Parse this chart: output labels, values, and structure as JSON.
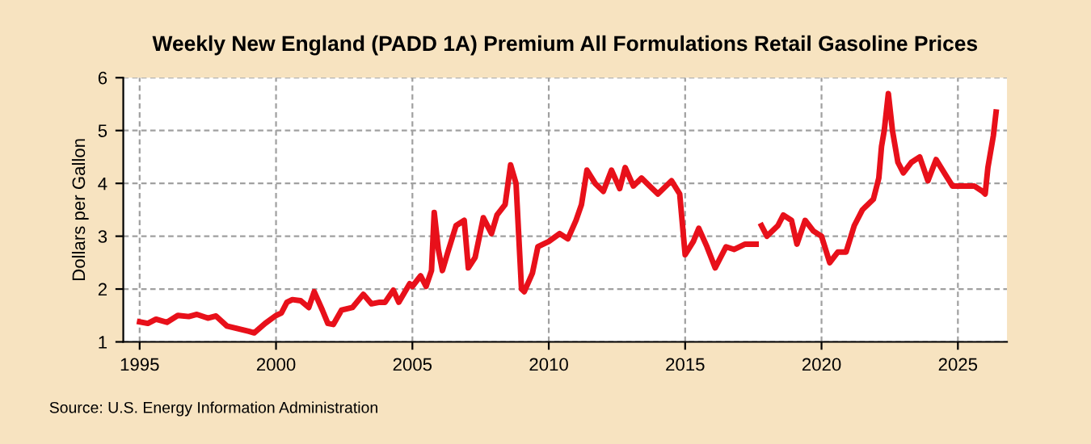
{
  "chart_data": {
    "type": "line",
    "title": "Weekly New England (PADD 1A) Premium All Formulations Retail Gasoline Prices",
    "ylabel": "Dollars per Gallon",
    "x": [
      1995.0,
      1995.3,
      1995.6,
      1996.0,
      1996.4,
      1996.8,
      1997.1,
      1997.5,
      1997.8,
      1998.2,
      1998.6,
      1999.0,
      1999.2,
      1999.6,
      2000.0,
      2000.2,
      2000.4,
      2000.6,
      2000.9,
      2001.2,
      2001.4,
      2001.7,
      2001.9,
      2002.1,
      2002.4,
      2002.8,
      2003.2,
      2003.5,
      2003.8,
      2004.0,
      2004.3,
      2004.5,
      2004.9,
      2005.0,
      2005.3,
      2005.5,
      2005.7,
      2005.8,
      2005.95,
      2006.1,
      2006.3,
      2006.6,
      2006.9,
      2007.05,
      2007.3,
      2007.6,
      2007.9,
      2008.1,
      2008.4,
      2008.6,
      2008.8,
      2009.0,
      2009.1,
      2009.4,
      2009.6,
      2010.0,
      2010.4,
      2010.7,
      2011.0,
      2011.2,
      2011.4,
      2011.7,
      2012.0,
      2012.3,
      2012.6,
      2012.8,
      2013.1,
      2013.4,
      2013.7,
      2014.0,
      2014.5,
      2014.8,
      2015.0,
      2015.3,
      2015.5,
      2015.8,
      2016.1,
      2016.5,
      2016.8,
      2017.2,
      2017.6,
      2017.7,
      2017.8,
      2018.0,
      2018.4,
      2018.6,
      2018.9,
      2019.1,
      2019.4,
      2019.7,
      2020.0,
      2020.3,
      2020.6,
      2020.9,
      2021.2,
      2021.5,
      2021.9,
      2022.1,
      2022.2,
      2022.3,
      2022.45,
      2022.6,
      2022.8,
      2023.0,
      2023.3,
      2023.6,
      2023.9,
      2024.2,
      2024.5,
      2024.8,
      2025.1,
      2025.6,
      2025.9,
      2026.0,
      2026.1,
      2026.3,
      2026.4
    ],
    "series": [
      {
        "color": "#e8101a",
        "values": [
          1.38,
          1.35,
          1.43,
          1.37,
          1.5,
          1.48,
          1.52,
          1.45,
          1.49,
          1.3,
          1.25,
          1.2,
          1.17,
          1.35,
          1.5,
          1.55,
          1.75,
          1.8,
          1.78,
          1.65,
          1.95,
          1.6,
          1.35,
          1.33,
          1.6,
          1.65,
          1.9,
          1.72,
          1.75,
          1.75,
          1.98,
          1.75,
          2.1,
          2.05,
          2.25,
          2.05,
          2.35,
          3.45,
          2.75,
          2.35,
          2.7,
          3.2,
          3.3,
          2.4,
          2.6,
          3.35,
          3.05,
          3.4,
          3.6,
          4.35,
          4.0,
          2.0,
          1.95,
          2.3,
          2.8,
          2.9,
          3.05,
          2.95,
          3.3,
          3.6,
          4.25,
          4.0,
          3.85,
          4.25,
          3.9,
          4.3,
          3.95,
          4.1,
          3.95,
          3.8,
          4.05,
          3.8,
          2.65,
          2.9,
          3.15,
          2.8,
          2.4,
          2.8,
          2.75,
          2.85,
          2.85,
          null,
          3.2,
          3.0,
          3.2,
          3.4,
          3.3,
          2.85,
          3.3,
          3.1,
          3.0,
          2.5,
          2.7,
          2.7,
          3.2,
          3.5,
          3.7,
          4.1,
          4.7,
          5.0,
          5.7,
          5.0,
          4.4,
          4.2,
          4.4,
          4.5,
          4.05,
          4.45,
          4.2,
          3.95,
          3.95,
          3.95,
          3.85,
          3.8,
          4.3,
          4.9,
          5.35
        ]
      }
    ],
    "xlim": [
      1994.4,
      2026.8
    ],
    "xticks": [
      1995,
      2000,
      2005,
      2010,
      2015,
      2020,
      2025
    ],
    "ylim": [
      1,
      6
    ],
    "yticks": [
      1,
      2,
      3,
      4,
      5,
      6
    ],
    "grid": true,
    "annotations": [
      "Source: U.S. Energy Information Administration"
    ]
  }
}
